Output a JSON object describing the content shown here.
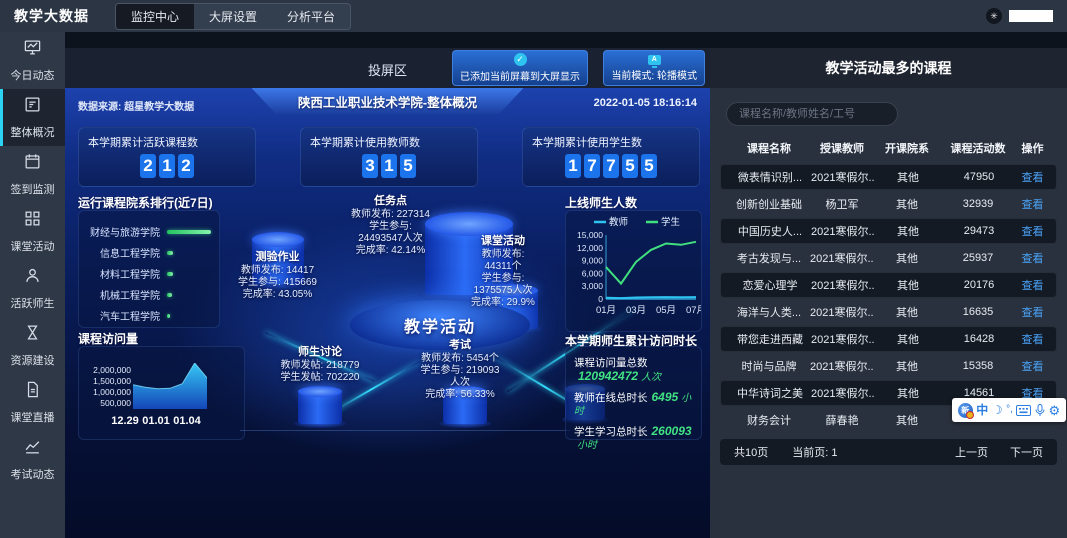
{
  "colors": {
    "accent_cyan": "#2bd2f2",
    "accent_green": "#41e07e",
    "accent_blue": "#1b74ec",
    "link_blue": "#4aa3f7"
  },
  "topbar": {
    "title": "教学大数据",
    "tabs": [
      {
        "key": "monitor-center",
        "label": "监控中心",
        "active": true
      },
      {
        "key": "screen-settings",
        "label": "大屏设置",
        "active": false
      },
      {
        "key": "analysis-platform",
        "label": "分析平台",
        "active": false
      }
    ]
  },
  "sidebar": {
    "items": [
      {
        "key": "today",
        "label": "今日动态",
        "icon": "monitor-chart-icon",
        "active": false
      },
      {
        "key": "overview",
        "label": "整体概况",
        "icon": "document-list-icon",
        "active": true
      },
      {
        "key": "checkin",
        "label": "签到监测",
        "icon": "calendar-icon",
        "active": false
      },
      {
        "key": "class-activity",
        "label": "课堂活动",
        "icon": "grid-icon",
        "active": false
      },
      {
        "key": "active-users",
        "label": "活跃师生",
        "icon": "person-icon",
        "active": false
      },
      {
        "key": "resources",
        "label": "资源建设",
        "icon": "hourglass-icon",
        "active": false
      },
      {
        "key": "live",
        "label": "课堂直播",
        "icon": "file-icon",
        "active": false
      },
      {
        "key": "exam",
        "label": "考试动态",
        "icon": "trend-icon",
        "active": false
      }
    ]
  },
  "projection": {
    "title": "投屏区",
    "added_button": "已添加当前屏幕到大屏显示",
    "mode_button": "当前模式: 轮播模式"
  },
  "screen": {
    "data_source": "数据来源: 超星教学大数据",
    "title": "陕西工业职业技术学院-整体概况",
    "datetime": "2022-01-05 18:16:14",
    "stats": [
      {
        "label": "本学期累计活跃课程数",
        "digits": "212"
      },
      {
        "label": "本学期累计使用教师数",
        "digits": "315"
      },
      {
        "label": "本学期累计使用学生数",
        "digits": "17755"
      }
    ],
    "ranking_title": "运行课程院系排行(近7日)",
    "visits_title": "课程访问量",
    "online_title": "上线师生人数",
    "activity_map": {
      "center": "教学活动",
      "nodes": [
        {
          "key": "quiz",
          "name": "测验作业",
          "lines": [
            "教师发布: 14417",
            "学生参与: 415669",
            "完成率: 43.05%"
          ]
        },
        {
          "key": "task",
          "name": "任务点",
          "lines": [
            "教师发布: 227314",
            "学生参与:",
            "24493547人次",
            "完成率: 42.14%"
          ]
        },
        {
          "key": "class",
          "name": "课堂活动",
          "lines": [
            "教师发布:",
            "44311个",
            "学生参与:",
            "1375575人次",
            "完成率: 29.9%"
          ]
        },
        {
          "key": "discuss",
          "name": "师生讨论",
          "lines": [
            "教师发帖: 218779",
            "学生发帖: 702220"
          ]
        },
        {
          "key": "exam",
          "name": "考试",
          "lines": [
            "教师发布: 5454个",
            "学生参与: 219093",
            "人次",
            "完成率: 56.33%"
          ]
        }
      ]
    },
    "growth": {
      "title": "本学期师生累计访问时长",
      "rows": [
        {
          "label": "课程访问量总数",
          "value": "120942472",
          "unit": "人次"
        },
        {
          "label": "教师在线总时长",
          "value": "6495",
          "unit": "小时"
        },
        {
          "label": "学生学习总时长",
          "value": "260093",
          "unit": "小时"
        }
      ]
    }
  },
  "chart_data": [
    {
      "id": "faculty-ranking",
      "type": "bar",
      "title": "运行课程院系排行(近7日)",
      "categories": [
        "财经与旅游学院",
        "信息工程学院",
        "材料工程学院",
        "机械工程学院",
        "汽车工程学院"
      ],
      "values_relative": [
        100,
        14,
        13,
        12,
        6
      ],
      "note": "horizontal bars, green, no numeric axis shown"
    },
    {
      "id": "course-visits",
      "type": "area",
      "title": "课程访问量",
      "x": [
        "12.29",
        "12.30",
        "12.31",
        "01.01",
        "01.02",
        "01.03",
        "01.04"
      ],
      "values": [
        1050000,
        950000,
        880000,
        900000,
        1100000,
        2000000,
        1350000
      ],
      "ytick_labels": [
        "2,000,000",
        "1,500,000",
        "1,000,000",
        "500,000"
      ],
      "xtick_labels": [
        "12.29",
        "01.01",
        "01.04"
      ],
      "ylim": [
        0,
        2000000
      ],
      "grid": false,
      "fill": "blue-gradient"
    },
    {
      "id": "online-users",
      "type": "line",
      "title": "上线师生人数",
      "x": [
        "01月",
        "02月",
        "03月",
        "04月",
        "05月",
        "06月",
        "07月"
      ],
      "series": [
        {
          "name": "教师",
          "color": "#2fc3ef",
          "values": [
            300,
            200,
            350,
            400,
            450,
            400,
            450
          ]
        },
        {
          "name": "学生",
          "color": "#41e07e",
          "values": [
            7500,
            3600,
            8700,
            11500,
            13000,
            12700,
            13400
          ]
        }
      ],
      "ytick_labels": [
        "15,000",
        "12,000",
        "9,000",
        "6,000",
        "3,000",
        "0"
      ],
      "xtick_labels": [
        "01月",
        "03月",
        "05月",
        "07月"
      ],
      "ylim": [
        0,
        15000
      ],
      "legend_position": "top",
      "grid": false
    }
  ],
  "course_panel": {
    "title": "教学活动最多的课程",
    "search_placeholder": "课程名称/教师姓名/工号",
    "headers": [
      "课程名称",
      "授课教师",
      "开课院系",
      "课程活动数",
      "操作"
    ],
    "action_label": "查看",
    "rows": [
      {
        "course": "微表情识别...",
        "teacher": "2021寒假尔...",
        "faculty": "其他",
        "count": "47950",
        "action": true
      },
      {
        "course": "创新创业基础",
        "teacher": "杨卫军",
        "faculty": "其他",
        "count": "32939",
        "action": true
      },
      {
        "course": "中国历史人...",
        "teacher": "2021寒假尔...",
        "faculty": "其他",
        "count": "29473",
        "action": true
      },
      {
        "course": "考古发现与...",
        "teacher": "2021寒假尔...",
        "faculty": "其他",
        "count": "25937",
        "action": true
      },
      {
        "course": "恋爱心理学",
        "teacher": "2021寒假尔...",
        "faculty": "其他",
        "count": "20176",
        "action": true
      },
      {
        "course": "海洋与人类...",
        "teacher": "2021寒假尔...",
        "faculty": "其他",
        "count": "16635",
        "action": true
      },
      {
        "course": "带您走进西藏",
        "teacher": "2021寒假尔...",
        "faculty": "其他",
        "count": "16428",
        "action": true
      },
      {
        "course": "时尚与品牌",
        "teacher": "2021寒假尔...",
        "faculty": "其他",
        "count": "15358",
        "action": true
      },
      {
        "course": "中华诗词之美",
        "teacher": "2021寒假尔...",
        "faculty": "其他",
        "count": "14561",
        "action": true
      },
      {
        "course": "财务会计",
        "teacher": "薛春艳",
        "faculty": "其他",
        "count": "",
        "action": false
      }
    ],
    "pagination": {
      "total": "共10页",
      "current": "当前页: 1",
      "prev": "上一页",
      "next": "下一页"
    }
  },
  "ime_toolbar": {
    "icons": [
      "input-method-logo",
      "chinese-mode",
      "half-moon",
      "punctuation",
      "keyboard",
      "microphone",
      "settings-gear"
    ]
  }
}
